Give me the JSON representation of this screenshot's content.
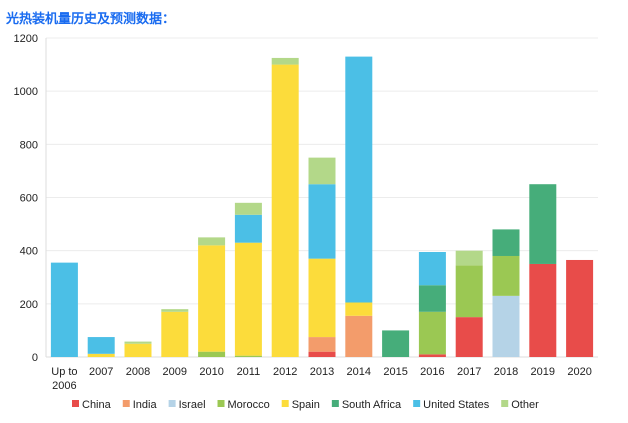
{
  "title": "光热装机量历史及预测数据：",
  "chart_data": {
    "type": "bar",
    "stacked": true,
    "categories": [
      "Up to 2006",
      "2007",
      "2008",
      "2009",
      "2010",
      "2011",
      "2012",
      "2013",
      "2014",
      "2015",
      "2016",
      "2017",
      "2018",
      "2019",
      "2020"
    ],
    "ylim": [
      0,
      1200
    ],
    "yticks": [
      0,
      200,
      400,
      600,
      800,
      1000,
      1200
    ],
    "grid": true,
    "legend_position": "bottom",
    "series": [
      {
        "name": "China",
        "color": "#e84c4a",
        "values": [
          0,
          0,
          0,
          0,
          0,
          0,
          0,
          20,
          0,
          0,
          10,
          150,
          0,
          350,
          365
        ]
      },
      {
        "name": "India",
        "color": "#f39c6b",
        "values": [
          0,
          0,
          0,
          0,
          0,
          0,
          0,
          55,
          155,
          0,
          0,
          0,
          0,
          0,
          0
        ]
      },
      {
        "name": "Israel",
        "color": "#b5d3e7",
        "values": [
          0,
          0,
          0,
          0,
          0,
          0,
          0,
          0,
          0,
          0,
          0,
          0,
          230,
          0,
          0
        ]
      },
      {
        "name": "Morocco",
        "color": "#9bc853",
        "values": [
          0,
          0,
          0,
          0,
          20,
          5,
          0,
          0,
          0,
          0,
          160,
          195,
          150,
          0,
          0
        ]
      },
      {
        "name": "Spain",
        "color": "#fcdc3b",
        "values": [
          0,
          12,
          50,
          170,
          400,
          425,
          1100,
          295,
          50,
          0,
          0,
          0,
          0,
          0,
          0
        ]
      },
      {
        "name": "South Africa",
        "color": "#46ad7a",
        "values": [
          0,
          0,
          0,
          0,
          0,
          0,
          0,
          0,
          0,
          100,
          100,
          0,
          100,
          300,
          0
        ]
      },
      {
        "name": "United States",
        "color": "#4bbfe6",
        "values": [
          355,
          63,
          0,
          0,
          0,
          105,
          0,
          280,
          925,
          0,
          125,
          0,
          0,
          0,
          0
        ]
      },
      {
        "name": "Other",
        "color": "#b3d889",
        "values": [
          0,
          0,
          8,
          10,
          30,
          45,
          25,
          100,
          0,
          0,
          0,
          55,
          0,
          0,
          0
        ]
      }
    ]
  }
}
